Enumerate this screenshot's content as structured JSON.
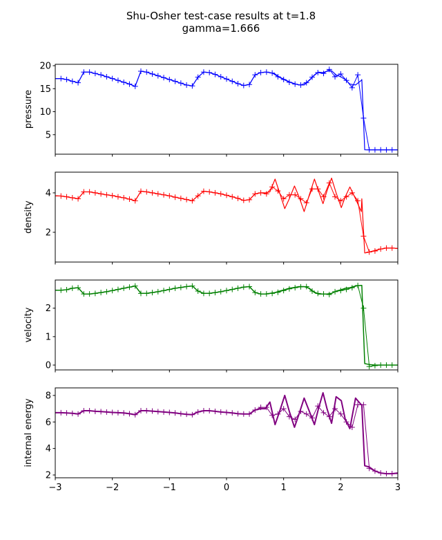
{
  "chart_data": {
    "type": "line",
    "title": "Shu-Osher test-case results at t=1.8",
    "subtitle": "gamma=1.666",
    "xlim": [
      -3,
      3
    ],
    "xticks": [
      -3,
      -2,
      -1,
      0,
      1,
      2,
      3
    ],
    "grid": false,
    "line_x": [
      -3.0,
      -2.9,
      -2.8,
      -2.7,
      -2.6,
      -2.5,
      -2.4,
      -2.3,
      -2.2,
      -2.1,
      -2.0,
      -1.9,
      -1.8,
      -1.7,
      -1.6,
      -1.5,
      -1.4,
      -1.3,
      -1.2,
      -1.1,
      -1.0,
      -0.9,
      -0.8,
      -0.7,
      -0.6,
      -0.5,
      -0.4,
      -0.3,
      -0.2,
      -0.1,
      0.0,
      0.1,
      0.2,
      0.3,
      0.4,
      0.5,
      0.6,
      0.68,
      0.76,
      0.85,
      0.93,
      1.02,
      1.1,
      1.19,
      1.27,
      1.36,
      1.45,
      1.54,
      1.61,
      1.69,
      1.76,
      1.84,
      1.92,
      2.01,
      2.08,
      2.16,
      2.26,
      2.36,
      2.37,
      2.42,
      2.5,
      2.6,
      2.7,
      2.8,
      2.9,
      3.0
    ],
    "marker_x": [
      -3.0,
      -2.9,
      -2.8,
      -2.7,
      -2.6,
      -2.5,
      -2.4,
      -2.3,
      -2.2,
      -2.1,
      -2.0,
      -1.9,
      -1.8,
      -1.7,
      -1.6,
      -1.5,
      -1.4,
      -1.3,
      -1.2,
      -1.1,
      -1.0,
      -0.9,
      -0.8,
      -0.7,
      -0.6,
      -0.5,
      -0.4,
      -0.3,
      -0.2,
      -0.1,
      0.0,
      0.1,
      0.2,
      0.3,
      0.4,
      0.5,
      0.6,
      0.7,
      0.8,
      0.9,
      1.0,
      1.1,
      1.2,
      1.3,
      1.4,
      1.5,
      1.6,
      1.7,
      1.8,
      1.9,
      2.0,
      2.1,
      2.2,
      2.3,
      2.4,
      2.5,
      2.6,
      2.7,
      2.8,
      2.9,
      3.0
    ],
    "panels": [
      {
        "ylabel": "pressure",
        "color": "#0000ff",
        "ylim": [
          0.76,
          20.3
        ],
        "yticks": [
          5,
          10,
          15,
          20
        ],
        "line": [
          17.2,
          17.2,
          17.0,
          16.6,
          16.3,
          18.6,
          18.6,
          18.3,
          18.0,
          17.6,
          17.2,
          16.8,
          16.4,
          16.0,
          15.5,
          18.8,
          18.6,
          18.2,
          17.8,
          17.4,
          17.0,
          16.6,
          16.2,
          15.8,
          15.6,
          17.5,
          18.6,
          18.5,
          18.1,
          17.6,
          17.1,
          16.6,
          16.1,
          15.7,
          15.9,
          18.0,
          18.5,
          18.6,
          18.5,
          18.2,
          17.5,
          17.0,
          16.5,
          16.1,
          15.8,
          15.8,
          16.8,
          18.0,
          18.6,
          18.5,
          18.8,
          18.9,
          18.0,
          17.5,
          17.0,
          16.0,
          15.8,
          16.8,
          17.0,
          1.7,
          1.7,
          1.7,
          1.7,
          1.7,
          1.7,
          1.7
        ],
        "markers": [
          17.2,
          17.2,
          17.0,
          16.6,
          16.3,
          18.6,
          18.6,
          18.3,
          18.0,
          17.6,
          17.2,
          16.8,
          16.4,
          16.0,
          15.5,
          18.8,
          18.6,
          18.2,
          17.8,
          17.4,
          17.0,
          16.6,
          16.2,
          15.8,
          15.6,
          17.5,
          18.6,
          18.5,
          18.1,
          17.6,
          17.1,
          16.6,
          16.1,
          15.7,
          15.9,
          18.0,
          18.5,
          18.6,
          18.4,
          17.6,
          17.0,
          16.4,
          16.0,
          15.8,
          16.3,
          17.5,
          18.5,
          18.3,
          19.2,
          17.6,
          18.2,
          16.8,
          15.2,
          18.0,
          8.6,
          1.7,
          1.7,
          1.7,
          1.7,
          1.7,
          1.7
        ]
      },
      {
        "ylabel": "density",
        "color": "#ff0000",
        "ylim": [
          0.49,
          5.05
        ],
        "yticks": [
          2,
          4
        ],
        "line": [
          3.85,
          3.84,
          3.8,
          3.75,
          3.7,
          4.05,
          4.05,
          4.0,
          3.95,
          3.9,
          3.86,
          3.8,
          3.75,
          3.68,
          3.6,
          4.08,
          4.05,
          4.0,
          3.95,
          3.9,
          3.85,
          3.78,
          3.72,
          3.66,
          3.6,
          3.85,
          4.08,
          4.05,
          4.0,
          3.95,
          3.88,
          3.8,
          3.72,
          3.62,
          3.65,
          3.95,
          4.0,
          4.0,
          4.05,
          4.7,
          4.0,
          3.2,
          3.7,
          4.35,
          3.8,
          3.05,
          3.9,
          4.7,
          4.1,
          3.45,
          4.1,
          4.75,
          4.0,
          3.25,
          3.8,
          4.3,
          3.7,
          3.05,
          3.7,
          0.95,
          1.0,
          1.08,
          1.15,
          1.2,
          1.2,
          1.18
        ],
        "markers": [
          3.85,
          3.84,
          3.8,
          3.75,
          3.7,
          4.05,
          4.05,
          4.0,
          3.95,
          3.9,
          3.86,
          3.8,
          3.75,
          3.68,
          3.6,
          4.08,
          4.05,
          4.0,
          3.95,
          3.9,
          3.85,
          3.78,
          3.72,
          3.66,
          3.6,
          3.85,
          4.08,
          4.05,
          4.0,
          3.95,
          3.88,
          3.8,
          3.72,
          3.62,
          3.65,
          3.95,
          4.0,
          3.95,
          4.3,
          4.1,
          3.7,
          3.9,
          3.9,
          3.7,
          3.5,
          4.2,
          4.2,
          3.8,
          4.5,
          3.8,
          3.6,
          3.8,
          4.0,
          3.6,
          1.8,
          1.0,
          1.05,
          1.15,
          1.2,
          1.2,
          1.18
        ]
      },
      {
        "ylabel": "velocity",
        "color": "#008000",
        "ylim": [
          -0.17,
          2.99
        ],
        "yticks": [
          0,
          1,
          2
        ],
        "line": [
          2.63,
          2.63,
          2.65,
          2.7,
          2.72,
          2.5,
          2.5,
          2.52,
          2.55,
          2.58,
          2.62,
          2.66,
          2.7,
          2.74,
          2.78,
          2.52,
          2.52,
          2.55,
          2.58,
          2.62,
          2.66,
          2.7,
          2.73,
          2.76,
          2.78,
          2.6,
          2.52,
          2.52,
          2.55,
          2.58,
          2.62,
          2.66,
          2.7,
          2.74,
          2.76,
          2.55,
          2.5,
          2.5,
          2.52,
          2.55,
          2.6,
          2.65,
          2.7,
          2.73,
          2.76,
          2.76,
          2.7,
          2.55,
          2.5,
          2.5,
          2.5,
          2.52,
          2.6,
          2.65,
          2.7,
          2.72,
          2.78,
          2.8,
          2.8,
          0.05,
          0.02,
          0.0,
          0.0,
          0.0,
          0.0,
          0.0
        ],
        "markers": [
          2.63,
          2.63,
          2.65,
          2.7,
          2.72,
          2.5,
          2.5,
          2.52,
          2.55,
          2.58,
          2.62,
          2.66,
          2.7,
          2.74,
          2.78,
          2.52,
          2.52,
          2.55,
          2.58,
          2.62,
          2.66,
          2.7,
          2.73,
          2.76,
          2.78,
          2.6,
          2.52,
          2.52,
          2.55,
          2.58,
          2.62,
          2.66,
          2.7,
          2.74,
          2.76,
          2.55,
          2.5,
          2.5,
          2.52,
          2.56,
          2.62,
          2.68,
          2.72,
          2.75,
          2.76,
          2.6,
          2.52,
          2.5,
          2.48,
          2.58,
          2.62,
          2.66,
          2.72,
          2.8,
          2.0,
          -0.05,
          -0.02,
          0.0,
          0.0,
          0.0,
          0.0
        ]
      },
      {
        "ylabel": "internal energy",
        "color": "#800080",
        "ylim": [
          1.79,
          8.57
        ],
        "yticks": [
          2,
          4,
          6,
          8
        ],
        "line": [
          6.7,
          6.7,
          6.68,
          6.65,
          6.6,
          6.85,
          6.85,
          6.8,
          6.78,
          6.75,
          6.72,
          6.7,
          6.68,
          6.62,
          6.55,
          6.85,
          6.85,
          6.82,
          6.78,
          6.75,
          6.72,
          6.68,
          6.62,
          6.58,
          6.55,
          6.75,
          6.85,
          6.85,
          6.8,
          6.75,
          6.72,
          6.68,
          6.62,
          6.6,
          6.6,
          6.9,
          7.0,
          7.0,
          7.5,
          5.8,
          6.8,
          8.0,
          6.8,
          5.6,
          6.6,
          7.8,
          6.8,
          5.8,
          7.0,
          8.2,
          7.0,
          5.9,
          7.9,
          7.6,
          6.2,
          5.5,
          7.8,
          7.3,
          7.3,
          2.7,
          2.6,
          2.3,
          2.15,
          2.1,
          2.1,
          2.15
        ],
        "markers": [
          6.7,
          6.7,
          6.68,
          6.65,
          6.6,
          6.85,
          6.85,
          6.8,
          6.78,
          6.75,
          6.72,
          6.7,
          6.68,
          6.62,
          6.55,
          6.85,
          6.85,
          6.82,
          6.78,
          6.75,
          6.72,
          6.68,
          6.62,
          6.58,
          6.55,
          6.75,
          6.85,
          6.85,
          6.8,
          6.75,
          6.72,
          6.68,
          6.62,
          6.6,
          6.6,
          6.9,
          7.1,
          7.1,
          6.5,
          6.6,
          7.0,
          6.4,
          6.2,
          6.8,
          6.6,
          6.3,
          7.2,
          6.7,
          6.4,
          7.0,
          6.6,
          6.0,
          5.6,
          7.3,
          7.3,
          2.5,
          2.3,
          2.15,
          2.1,
          2.1,
          2.1
        ]
      }
    ]
  }
}
